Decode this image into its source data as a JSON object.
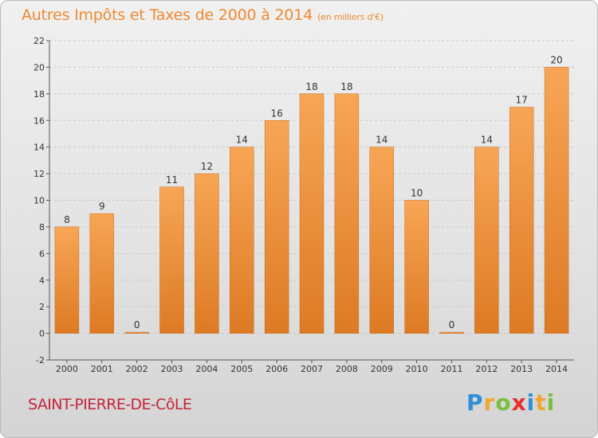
{
  "title": {
    "main": "Autres Impôts et Taxes de 2000 à 2014",
    "unit": "(en milliers d'€)"
  },
  "commune": "SAINT-PIERRE-DE-CôLE",
  "logo": {
    "letters": [
      "P",
      "r",
      "o",
      "x",
      "i",
      "t",
      "i"
    ],
    "colors": [
      "#2f8fd6",
      "#f2a531",
      "#7bbf3d",
      "#e5312b",
      "#2f8fd6",
      "#f2a531",
      "#7bbf3d"
    ]
  },
  "colors": {
    "bar_top": "#f7a656",
    "bar_bottom": "#dd7a24",
    "bar_edge": "#c96b1e",
    "axis_text": "#333333",
    "grid": "#c9c9c9"
  },
  "chart_data": {
    "type": "bar",
    "title": "Autres Impôts et Taxes de 2000 à 2014",
    "xlabel": "",
    "ylabel": "",
    "categories": [
      "2000",
      "2001",
      "2002",
      "2003",
      "2004",
      "2005",
      "2006",
      "2007",
      "2008",
      "2009",
      "2010",
      "2011",
      "2012",
      "2013",
      "2014"
    ],
    "values": [
      8,
      9,
      0,
      11,
      12,
      14,
      16,
      18,
      18,
      14,
      10,
      0,
      14,
      17,
      20
    ],
    "ylim": [
      -2,
      22
    ],
    "yticks": [
      -2,
      0,
      2,
      4,
      6,
      8,
      10,
      12,
      14,
      16,
      18,
      20,
      22
    ],
    "grid": "horizontal-dashed",
    "legend": "none"
  }
}
